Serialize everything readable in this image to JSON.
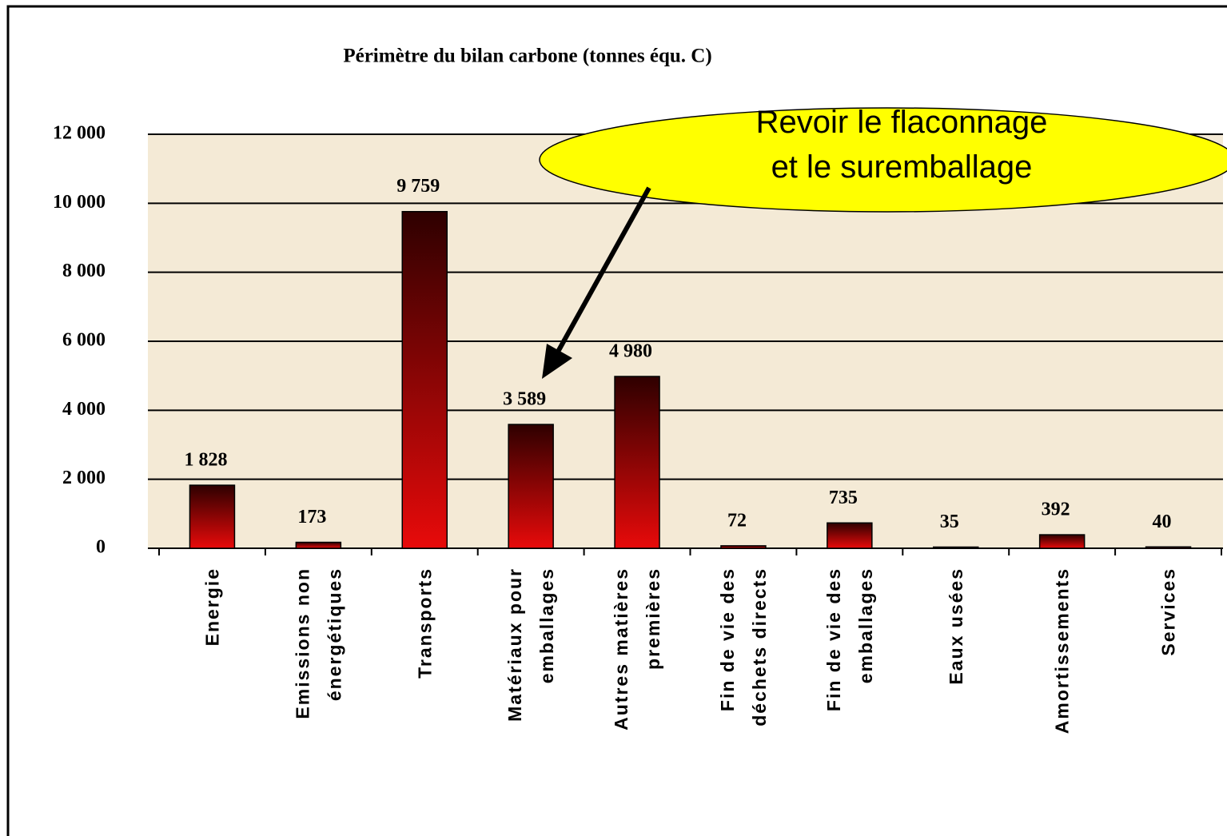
{
  "chart_data": {
    "type": "bar",
    "title": "Périmètre du bilan carbone (tonnes équ. C)",
    "categories": [
      "Energie",
      "Emissions non\nénergétiques",
      "Transports",
      "Matériaux pour\nemballages",
      "Autres matières\npremières",
      "Fin de vie des\ndéchets directs",
      "Fin de vie des\nemballages",
      "Eaux usées",
      "Amortissements",
      "Services"
    ],
    "values": [
      1828,
      173,
      9759,
      3589,
      4980,
      72,
      735,
      35,
      392,
      40
    ],
    "value_labels": [
      "1 828",
      "173",
      "9 759",
      "3 589",
      "4 980",
      "72",
      "735",
      "35",
      "392",
      "40"
    ],
    "gradient": [
      "#2e0000",
      "#e80a0a"
    ],
    "ylim": [
      0,
      12000
    ],
    "yticks": [
      {
        "value": 0,
        "label": "0"
      },
      {
        "value": 2000,
        "label": "2 000"
      },
      {
        "value": 4000,
        "label": "4 000"
      },
      {
        "value": 6000,
        "label": "6 000"
      },
      {
        "value": 8000,
        "label": "8 000"
      },
      {
        "value": 10000,
        "label": "10 000"
      },
      {
        "value": 12000,
        "label": "12 000"
      }
    ],
    "grid": true,
    "annotation": "Revoir le flaconnage\net le suremballage"
  }
}
